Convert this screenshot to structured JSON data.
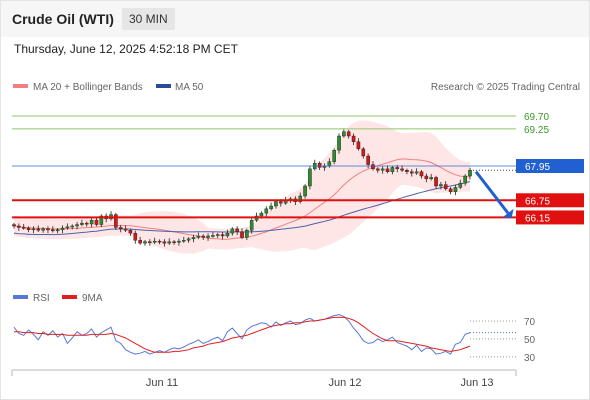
{
  "header": {
    "title": "Crude Oil (WTI)",
    "timeframe": "30 MIN"
  },
  "timestamp": "Thursday, June 12, 2025 4:52:18 PM CET",
  "legend": {
    "ma20": "MA 20 + Bollinger Bands",
    "ma50": "MA 50",
    "watermark": "Research © 2025 Trading Central"
  },
  "colors": {
    "ma20": "#f08080",
    "band": "#ffd6d6",
    "ma50": "#4a62a8",
    "up": "#2e8b2e",
    "down": "#d01818",
    "resistance": "#8cc86a",
    "support": "#e01010",
    "current": "#2060d0",
    "rsi": "#5878d8",
    "rsi_ma": "#e02020"
  },
  "chart_data": [
    {
      "type": "candlestick",
      "title": "Crude Oil (WTI)",
      "timeframe": "30 MIN",
      "ylim": [
        64.1,
        70.4
      ],
      "x_ticks": [
        "Jun 11",
        "Jun 12",
        "Jun 13"
      ],
      "series": [
        {
          "name": "MA 20 + Bollinger Bands"
        },
        {
          "name": "MA 50"
        }
      ],
      "levels": {
        "resistance": [
          {
            "label": "69.70",
            "value": 69.7
          },
          {
            "label": "69.25",
            "value": 69.25
          }
        ],
        "current": {
          "label": "67.95",
          "value": 67.95
        },
        "support": [
          {
            "label": "66.75",
            "value": 66.75
          },
          {
            "label": "66.15",
            "value": 66.15
          }
        ]
      },
      "forecast_arrow": {
        "from": 67.75,
        "to": 66.3
      },
      "close": [
        65.85,
        65.8,
        65.78,
        65.72,
        65.75,
        65.7,
        65.75,
        65.72,
        65.68,
        65.72,
        65.78,
        65.82,
        65.85,
        65.9,
        65.95,
        65.92,
        66.05,
        65.9,
        66.2,
        66.1,
        66.25,
        65.8,
        65.75,
        65.7,
        65.6,
        65.35,
        65.25,
        65.3,
        65.28,
        65.32,
        65.3,
        65.25,
        65.3,
        65.28,
        65.32,
        65.35,
        65.4,
        65.45,
        65.5,
        65.45,
        65.5,
        65.52,
        65.55,
        65.5,
        65.6,
        65.75,
        65.65,
        65.45,
        65.7,
        66.05,
        66.2,
        66.3,
        66.45,
        66.55,
        66.7,
        66.65,
        66.75,
        66.8,
        66.7,
        66.9,
        67.25,
        67.85,
        68.05,
        67.9,
        67.95,
        68.1,
        68.5,
        69.0,
        69.15,
        69.0,
        68.8,
        68.55,
        68.3,
        68.0,
        67.85,
        67.8,
        67.85,
        67.75,
        67.9,
        67.85,
        67.8,
        67.75,
        67.7,
        67.75,
        67.6,
        67.5,
        67.55,
        67.25,
        67.3,
        67.15,
        67.05,
        67.2,
        67.35,
        67.6,
        67.8
      ]
    },
    {
      "type": "line",
      "title": "RSI",
      "series": [
        {
          "name": "RSI"
        },
        {
          "name": "9MA"
        }
      ],
      "ylim": [
        22,
        80
      ],
      "y_ticks": [
        70,
        50,
        30
      ],
      "rsi": [
        63,
        56,
        54,
        60,
        55,
        49,
        58,
        54,
        59,
        52,
        56,
        45,
        51,
        58,
        54,
        56,
        61,
        52,
        57,
        60,
        63,
        48,
        45,
        38,
        35,
        33,
        34,
        36,
        33,
        35,
        37,
        35,
        38,
        40,
        39,
        41,
        44,
        46,
        49,
        45,
        47,
        50,
        52,
        48,
        58,
        62,
        56,
        50,
        60,
        64,
        66,
        68,
        67,
        63,
        69,
        65,
        68,
        70,
        66,
        67,
        71,
        73,
        70,
        71,
        72,
        74,
        76,
        77,
        75,
        70,
        62,
        56,
        48,
        45,
        46,
        50,
        47,
        49,
        52,
        46,
        44,
        42,
        38,
        43,
        36,
        40,
        39,
        33,
        34,
        36,
        33,
        44,
        46,
        55,
        57
      ],
      "rsi_ma": [
        58,
        58,
        57,
        57,
        57,
        56,
        56,
        55,
        55,
        55,
        55,
        54,
        54,
        54,
        54,
        54,
        55,
        55,
        55,
        55,
        56,
        55,
        53,
        51,
        48,
        45,
        42,
        39,
        37,
        35,
        35,
        35,
        35,
        36,
        36,
        37,
        38,
        40,
        41,
        42,
        44,
        45,
        46,
        47,
        49,
        51,
        52,
        53,
        54,
        56,
        58,
        60,
        62,
        64,
        65,
        66,
        67,
        67,
        68,
        68,
        69,
        70,
        70,
        71,
        72,
        73,
        74,
        74,
        74,
        73,
        71,
        68,
        64,
        60,
        56,
        53,
        50,
        48,
        48,
        48,
        47,
        46,
        45,
        44,
        43,
        42,
        40,
        39,
        38,
        37,
        36,
        37,
        38,
        40,
        42
      ]
    }
  ]
}
